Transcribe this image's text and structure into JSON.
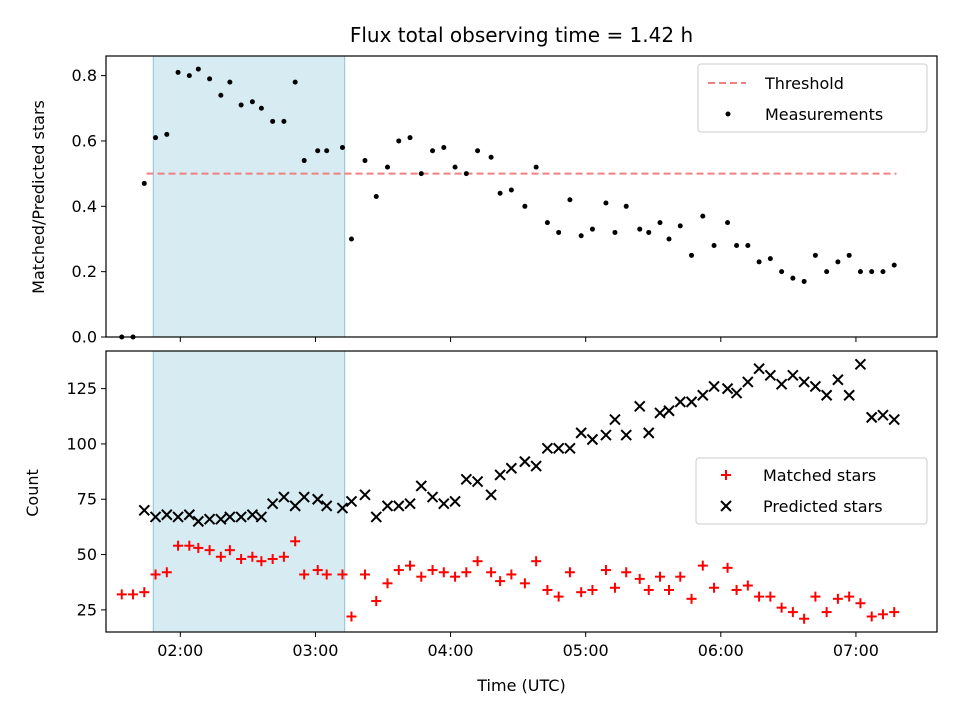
{
  "chart_data": [
    {
      "type": "scatter",
      "title": "Flux total observing time = 1.42 h",
      "ylabel": "Matched/Predicted stars",
      "xlabel": "",
      "xlim": [
        "01:27",
        "07:36"
      ],
      "ylim": [
        0,
        0.86
      ],
      "yticks": [
        0.0,
        0.2,
        0.4,
        0.6,
        0.8
      ],
      "ytick_labels": [
        "0.0",
        "0.2",
        "0.4",
        "0.6",
        "0.8"
      ],
      "xticks": [
        "02:00",
        "03:00",
        "04:00",
        "05:00",
        "06:00",
        "07:00"
      ],
      "shaded_region": {
        "x_start": "01:48",
        "x_end": "03:13",
        "color": "#add8e6"
      },
      "legend_position": "top-right",
      "threshold": {
        "name": "Threshold",
        "y": 0.5,
        "x_start": "01:45",
        "x_end": "07:18",
        "color": "#f08080"
      },
      "series": [
        {
          "name": "Measurements",
          "color": "#000000",
          "marker": "dot",
          "points": [
            [
              "01:34",
              0.0
            ],
            [
              "01:39",
              0.0
            ],
            [
              "01:44",
              0.47
            ],
            [
              "01:49",
              0.61
            ],
            [
              "01:54",
              0.62
            ],
            [
              "01:59",
              0.81
            ],
            [
              "02:04",
              0.8
            ],
            [
              "02:08",
              0.82
            ],
            [
              "02:13",
              0.79
            ],
            [
              "02:18",
              0.74
            ],
            [
              "02:22",
              0.78
            ],
            [
              "02:27",
              0.71
            ],
            [
              "02:32",
              0.72
            ],
            [
              "02:36",
              0.7
            ],
            [
              "02:41",
              0.66
            ],
            [
              "02:46",
              0.66
            ],
            [
              "02:51",
              0.78
            ],
            [
              "02:55",
              0.54
            ],
            [
              "03:01",
              0.57
            ],
            [
              "03:05",
              0.57
            ],
            [
              "03:12",
              0.58
            ],
            [
              "03:16",
              0.3
            ],
            [
              "03:22",
              0.54
            ],
            [
              "03:27",
              0.43
            ],
            [
              "03:32",
              0.52
            ],
            [
              "03:37",
              0.6
            ],
            [
              "03:42",
              0.61
            ],
            [
              "03:47",
              0.5
            ],
            [
              "03:52",
              0.57
            ],
            [
              "03:57",
              0.58
            ],
            [
              "04:02",
              0.52
            ],
            [
              "04:07",
              0.5
            ],
            [
              "04:12",
              0.57
            ],
            [
              "04:18",
              0.55
            ],
            [
              "04:22",
              0.44
            ],
            [
              "04:27",
              0.45
            ],
            [
              "04:33",
              0.4
            ],
            [
              "04:38",
              0.52
            ],
            [
              "04:43",
              0.35
            ],
            [
              "04:48",
              0.32
            ],
            [
              "04:53",
              0.42
            ],
            [
              "04:58",
              0.31
            ],
            [
              "05:03",
              0.33
            ],
            [
              "05:09",
              0.41
            ],
            [
              "05:13",
              0.32
            ],
            [
              "05:18",
              0.4
            ],
            [
              "05:24",
              0.33
            ],
            [
              "05:28",
              0.32
            ],
            [
              "05:33",
              0.35
            ],
            [
              "05:37",
              0.3
            ],
            [
              "05:42",
              0.34
            ],
            [
              "05:47",
              0.25
            ],
            [
              "05:52",
              0.37
            ],
            [
              "05:57",
              0.28
            ],
            [
              "06:03",
              0.35
            ],
            [
              "06:07",
              0.28
            ],
            [
              "06:12",
              0.28
            ],
            [
              "06:17",
              0.23
            ],
            [
              "06:22",
              0.24
            ],
            [
              "06:27",
              0.2
            ],
            [
              "06:32",
              0.18
            ],
            [
              "06:37",
              0.17
            ],
            [
              "06:42",
              0.25
            ],
            [
              "06:47",
              0.2
            ],
            [
              "06:52",
              0.23
            ],
            [
              "06:57",
              0.25
            ],
            [
              "07:02",
              0.2
            ],
            [
              "07:07",
              0.2
            ],
            [
              "07:12",
              0.2
            ],
            [
              "07:17",
              0.22
            ]
          ]
        }
      ]
    },
    {
      "type": "scatter",
      "title": "",
      "ylabel": "Count",
      "xlabel": "Time (UTC)",
      "xlim": [
        "01:27",
        "07:36"
      ],
      "ylim": [
        15,
        142
      ],
      "yticks": [
        25,
        50,
        75,
        100,
        125
      ],
      "ytick_labels": [
        "25",
        "50",
        "75",
        "100",
        "125"
      ],
      "xticks": [
        "02:00",
        "03:00",
        "04:00",
        "05:00",
        "06:00",
        "07:00"
      ],
      "xtick_labels": [
        "02:00",
        "03:00",
        "04:00",
        "05:00",
        "06:00",
        "07:00"
      ],
      "shaded_region": {
        "x_start": "01:48",
        "x_end": "03:13",
        "color": "#add8e6"
      },
      "legend_position": "center-right",
      "series": [
        {
          "name": "Matched stars",
          "color": "#ff0000",
          "marker": "plus",
          "points": [
            [
              "01:34",
              32
            ],
            [
              "01:39",
              32
            ],
            [
              "01:44",
              33
            ],
            [
              "01:49",
              41
            ],
            [
              "01:54",
              42
            ],
            [
              "01:59",
              54
            ],
            [
              "02:04",
              54
            ],
            [
              "02:08",
              53
            ],
            [
              "02:13",
              52
            ],
            [
              "02:18",
              49
            ],
            [
              "02:22",
              52
            ],
            [
              "02:27",
              48
            ],
            [
              "02:32",
              49
            ],
            [
              "02:36",
              47
            ],
            [
              "02:41",
              48
            ],
            [
              "02:46",
              49
            ],
            [
              "02:51",
              56
            ],
            [
              "02:55",
              41
            ],
            [
              "03:01",
              43
            ],
            [
              "03:05",
              41
            ],
            [
              "03:12",
              41
            ],
            [
              "03:16",
              22
            ],
            [
              "03:22",
              41
            ],
            [
              "03:27",
              29
            ],
            [
              "03:32",
              37
            ],
            [
              "03:37",
              43
            ],
            [
              "03:42",
              45
            ],
            [
              "03:47",
              40
            ],
            [
              "03:52",
              43
            ],
            [
              "03:57",
              42
            ],
            [
              "04:02",
              40
            ],
            [
              "04:07",
              42
            ],
            [
              "04:12",
              47
            ],
            [
              "04:18",
              42
            ],
            [
              "04:22",
              38
            ],
            [
              "04:27",
              41
            ],
            [
              "04:33",
              37
            ],
            [
              "04:38",
              47
            ],
            [
              "04:43",
              34
            ],
            [
              "04:48",
              31
            ],
            [
              "04:53",
              42
            ],
            [
              "04:58",
              33
            ],
            [
              "05:03",
              34
            ],
            [
              "05:09",
              43
            ],
            [
              "05:13",
              35
            ],
            [
              "05:18",
              42
            ],
            [
              "05:24",
              39
            ],
            [
              "05:28",
              34
            ],
            [
              "05:33",
              40
            ],
            [
              "05:37",
              34
            ],
            [
              "05:42",
              40
            ],
            [
              "05:47",
              30
            ],
            [
              "05:52",
              45
            ],
            [
              "05:57",
              35
            ],
            [
              "06:03",
              44
            ],
            [
              "06:07",
              34
            ],
            [
              "06:12",
              36
            ],
            [
              "06:17",
              31
            ],
            [
              "06:22",
              31
            ],
            [
              "06:27",
              26
            ],
            [
              "06:32",
              24
            ],
            [
              "06:37",
              21
            ],
            [
              "06:42",
              31
            ],
            [
              "06:47",
              24
            ],
            [
              "06:52",
              30
            ],
            [
              "06:57",
              31
            ],
            [
              "07:02",
              28
            ],
            [
              "07:07",
              22
            ],
            [
              "07:12",
              23
            ],
            [
              "07:17",
              24
            ]
          ]
        },
        {
          "name": "Predicted stars",
          "color": "#000000",
          "marker": "x",
          "points": [
            [
              "01:44",
              70
            ],
            [
              "01:49",
              67
            ],
            [
              "01:54",
              68
            ],
            [
              "01:59",
              67
            ],
            [
              "02:04",
              68
            ],
            [
              "02:08",
              65
            ],
            [
              "02:13",
              66
            ],
            [
              "02:18",
              66
            ],
            [
              "02:22",
              67
            ],
            [
              "02:27",
              67
            ],
            [
              "02:32",
              68
            ],
            [
              "02:36",
              67
            ],
            [
              "02:41",
              73
            ],
            [
              "02:46",
              76
            ],
            [
              "02:51",
              72
            ],
            [
              "02:55",
              76
            ],
            [
              "03:01",
              75
            ],
            [
              "03:05",
              72
            ],
            [
              "03:12",
              71
            ],
            [
              "03:16",
              74
            ],
            [
              "03:22",
              77
            ],
            [
              "03:27",
              67
            ],
            [
              "03:32",
              72
            ],
            [
              "03:37",
              72
            ],
            [
              "03:42",
              73
            ],
            [
              "03:47",
              81
            ],
            [
              "03:52",
              76
            ],
            [
              "03:57",
              73
            ],
            [
              "04:02",
              74
            ],
            [
              "04:07",
              84
            ],
            [
              "04:12",
              83
            ],
            [
              "04:18",
              77
            ],
            [
              "04:22",
              86
            ],
            [
              "04:27",
              89
            ],
            [
              "04:33",
              92
            ],
            [
              "04:38",
              90
            ],
            [
              "04:43",
              98
            ],
            [
              "04:48",
              98
            ],
            [
              "04:53",
              98
            ],
            [
              "04:58",
              105
            ],
            [
              "05:03",
              102
            ],
            [
              "05:09",
              104
            ],
            [
              "05:13",
              111
            ],
            [
              "05:18",
              104
            ],
            [
              "05:24",
              117
            ],
            [
              "05:28",
              105
            ],
            [
              "05:33",
              114
            ],
            [
              "05:37",
              115
            ],
            [
              "05:42",
              119
            ],
            [
              "05:47",
              119
            ],
            [
              "05:52",
              122
            ],
            [
              "05:57",
              126
            ],
            [
              "06:03",
              125
            ],
            [
              "06:07",
              123
            ],
            [
              "06:12",
              128
            ],
            [
              "06:17",
              134
            ],
            [
              "06:22",
              131
            ],
            [
              "06:27",
              127
            ],
            [
              "06:32",
              131
            ],
            [
              "06:37",
              128
            ],
            [
              "06:42",
              126
            ],
            [
              "06:47",
              122
            ],
            [
              "06:52",
              129
            ],
            [
              "06:57",
              122
            ],
            [
              "07:02",
              136
            ],
            [
              "07:07",
              112
            ],
            [
              "07:12",
              113
            ],
            [
              "07:17",
              111
            ]
          ]
        }
      ]
    }
  ]
}
